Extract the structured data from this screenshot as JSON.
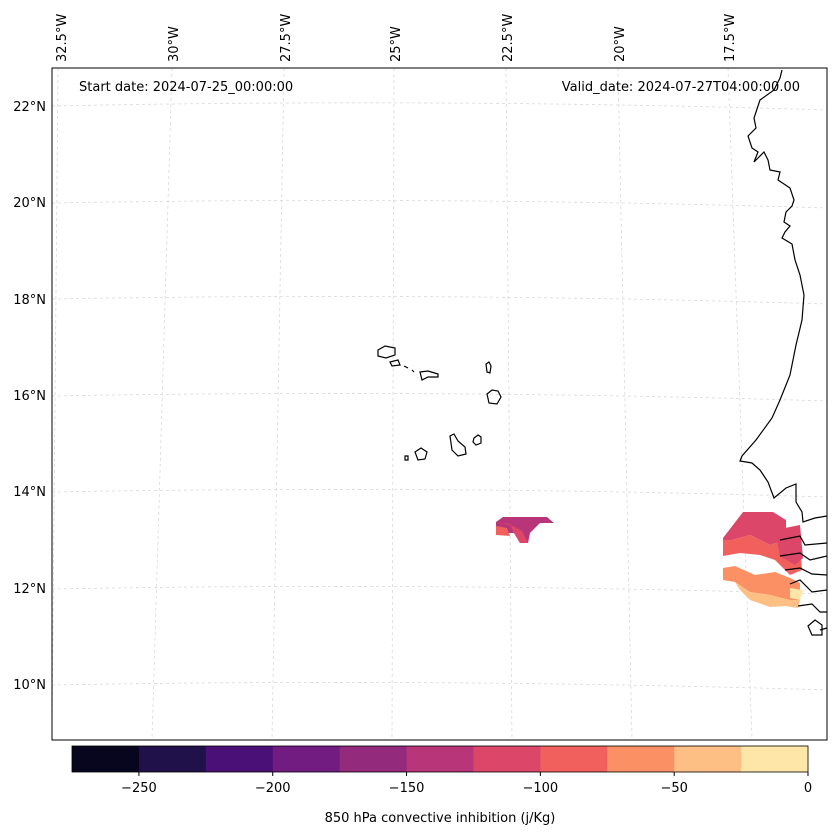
{
  "header": {
    "start_date": "Start date: 2024-07-25_00:00:00",
    "valid_date": "Valid_date: 2024-07-27T04:00:00.00"
  },
  "map": {
    "lon_labels": [
      "32.5°W",
      "30°W",
      "27.5°W",
      "25°W",
      "22.5°W",
      "20°W",
      "17.5°W"
    ],
    "lat_labels": [
      "22°N",
      "20°N",
      "18°N",
      "16°N",
      "14°N",
      "12°N",
      "10°N"
    ]
  },
  "colorbar": {
    "label": "850 hPa convective inhibition (j/Kg)",
    "ticks": [
      "−250",
      "−200",
      "−150",
      "−100",
      "−50",
      "0"
    ],
    "range": [
      -275,
      0
    ],
    "bins": [
      {
        "from": -275,
        "to": -250,
        "color": "#08061e"
      },
      {
        "from": -250,
        "to": -225,
        "color": "#21114a"
      },
      {
        "from": -225,
        "to": -200,
        "color": "#4b0f78"
      },
      {
        "from": -200,
        "to": -175,
        "color": "#721c81"
      },
      {
        "from": -175,
        "to": -150,
        "color": "#932a7c"
      },
      {
        "from": -150,
        "to": -125,
        "color": "#b8357a"
      },
      {
        "from": -125,
        "to": -100,
        "color": "#dc4669"
      },
      {
        "from": -100,
        "to": -75,
        "color": "#f1605d"
      },
      {
        "from": -75,
        "to": -50,
        "color": "#fb9064"
      },
      {
        "from": -50,
        "to": -25,
        "color": "#fdbf84"
      },
      {
        "from": -25,
        "to": 0,
        "color": "#fde6a8"
      }
    ]
  }
}
